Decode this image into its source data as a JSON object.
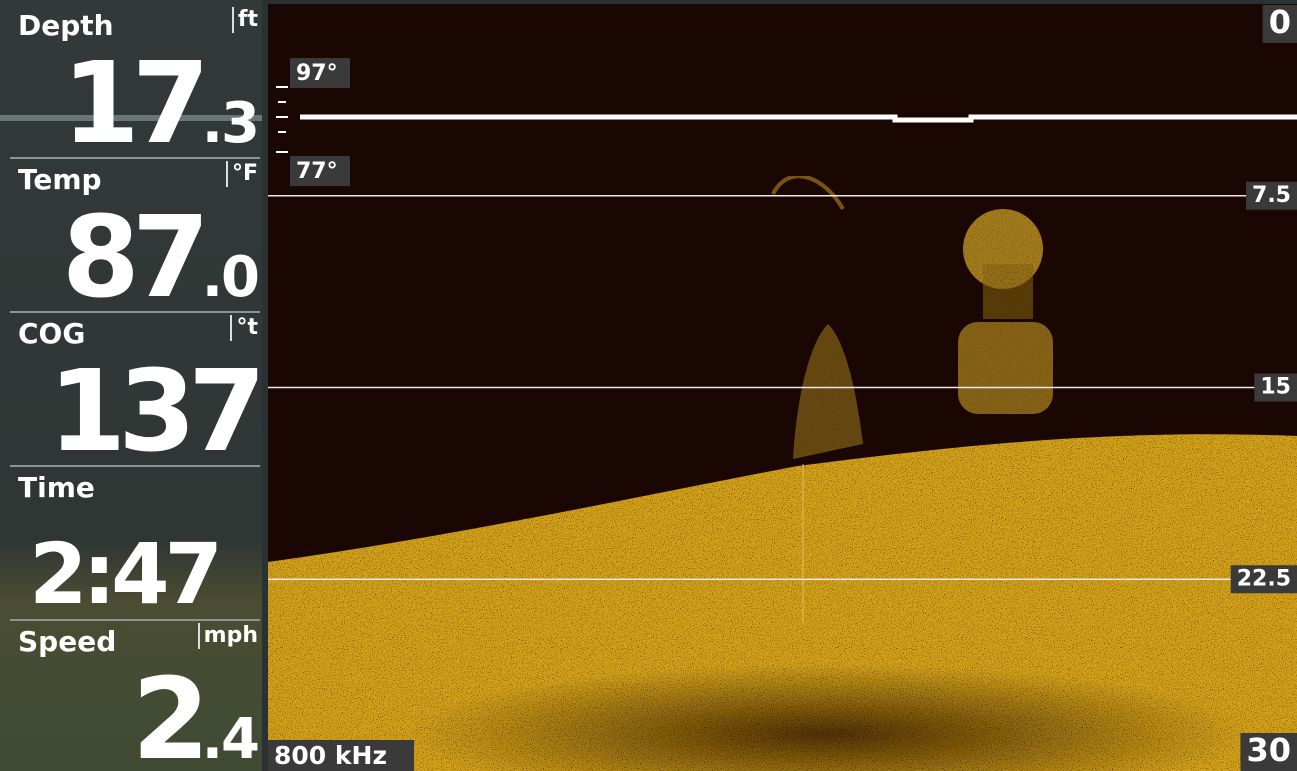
{
  "readouts": [
    {
      "label": "Depth",
      "unit": "ft",
      "value": "17",
      "decimal": ".3"
    },
    {
      "label": "Temp",
      "unit": "°F",
      "value": "87",
      "decimal": ".0"
    },
    {
      "label": "COG",
      "unit": "°t",
      "value": "137"
    },
    {
      "label": "Time",
      "value": "2:47"
    },
    {
      "label": "Speed",
      "unit": "mph",
      "value": "2",
      "decimal": ".4"
    }
  ],
  "sonar": {
    "depth_scale": [
      0,
      7.5,
      15,
      22.5,
      30
    ],
    "temp_graph": {
      "high": "97°",
      "low": "77°"
    },
    "frequency": "800 kHz"
  }
}
